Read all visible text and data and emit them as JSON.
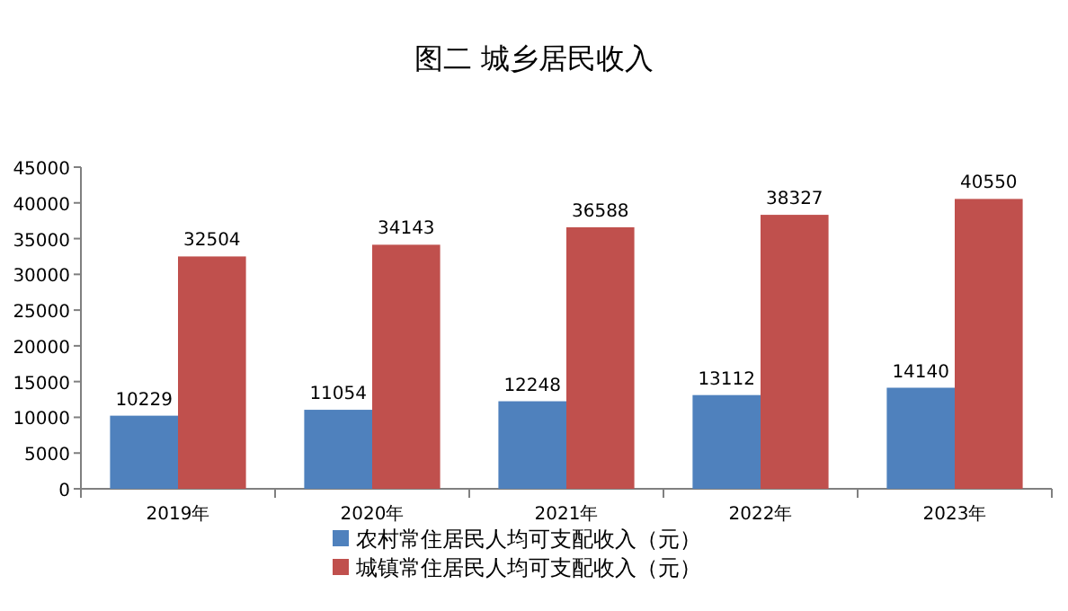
{
  "chart_data": {
    "type": "bar",
    "title": "图二  城乡居民收入",
    "categories": [
      "2019年",
      "2020年",
      "2021年",
      "2022年",
      "2023年"
    ],
    "series": [
      {
        "name": "农村常住居民人均可支配收入（元）",
        "color": "#4f81bd",
        "values": [
          10229,
          11054,
          12248,
          13112,
          14140
        ]
      },
      {
        "name": "城镇常住居民人均可支配收入（元）",
        "color": "#c0504d",
        "values": [
          32504,
          34143,
          36588,
          38327,
          40550
        ]
      }
    ],
    "ylim": [
      0,
      45000
    ],
    "yticks": [
      0,
      5000,
      10000,
      15000,
      20000,
      25000,
      30000,
      35000,
      40000,
      45000
    ],
    "data_labels": true,
    "legend": "bottom"
  }
}
